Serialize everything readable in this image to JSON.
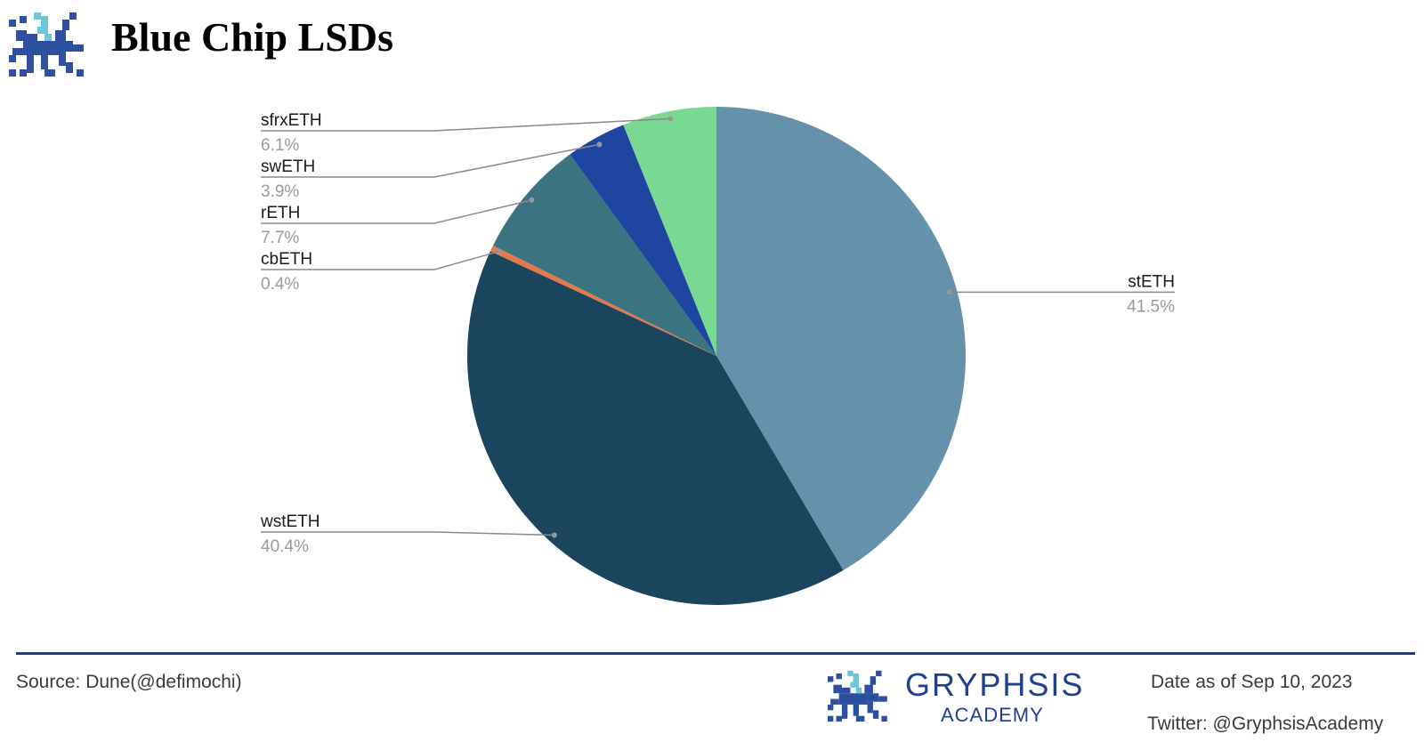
{
  "header": {
    "title": "Blue Chip LSDs"
  },
  "chart_data": {
    "type": "pie",
    "title": "Blue Chip LSDs",
    "start_angle_deg": 0,
    "direction": "clockwise",
    "slices": [
      {
        "label": "stETH",
        "value": 41.5,
        "value_label": "41.5%",
        "color": "#6591aa",
        "label_side": "right"
      },
      {
        "label": "wstETH",
        "value": 40.4,
        "value_label": "40.4%",
        "color": "#1b445d",
        "label_side": "left"
      },
      {
        "label": "cbETH",
        "value": 0.4,
        "value_label": "0.4%",
        "color": "#e8784a",
        "label_side": "left"
      },
      {
        "label": "rETH",
        "value": 7.7,
        "value_label": "7.7%",
        "color": "#3b7480",
        "label_side": "left"
      },
      {
        "label": "swETH",
        "value": 3.9,
        "value_label": "3.9%",
        "color": "#1e45a0",
        "label_side": "left"
      },
      {
        "label": "sfrxETH",
        "value": 6.1,
        "value_label": "6.1%",
        "color": "#79d891",
        "label_side": "left"
      }
    ]
  },
  "footer": {
    "source": "Source: Dune(@defimochi)",
    "brand_name": "GRYPHSIS",
    "brand_sub": "ACADEMY",
    "date": "Date as of  Sep 10, 2023",
    "twitter": "Twitter: @GryphsisAcademy"
  }
}
